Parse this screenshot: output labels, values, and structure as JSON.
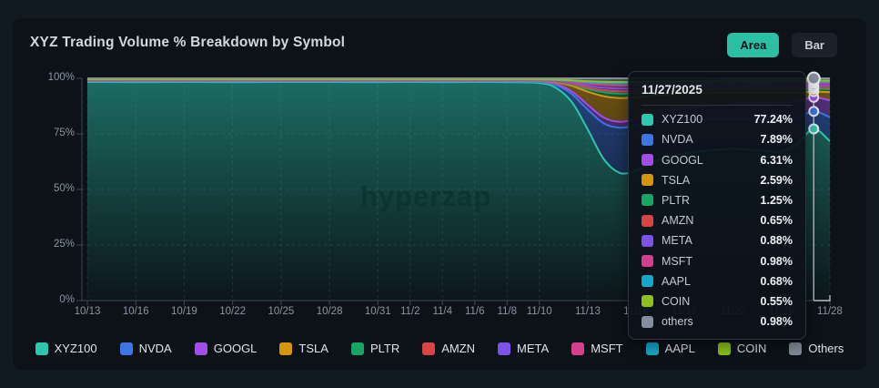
{
  "header": {
    "title": "XYZ Trading Volume % Breakdown by Symbol",
    "toggle": {
      "area_label": "Area",
      "bar_label": "Bar",
      "active": "Area"
    }
  },
  "watermark": "hyperzap",
  "colors": {
    "accent": "#2bc0a3",
    "page_bg": "#111923",
    "card_bg": "#0c1218",
    "axis": "#3e4a57",
    "grid": "rgba(154,180,190,0.16)",
    "crosshair": "#c8d0d8"
  },
  "chart_data": {
    "type": "area",
    "stacked": true,
    "unit": "%",
    "title": "XYZ Trading Volume % Breakdown by Symbol",
    "ylim": [
      0,
      100
    ],
    "grid": "dashed",
    "legend_position": "bottom",
    "y_ticks": [
      {
        "label": "100%",
        "value": 100
      },
      {
        "label": "75%",
        "value": 75
      },
      {
        "label": "50%",
        "value": 50
      },
      {
        "label": "25%",
        "value": 25
      },
      {
        "label": "0%",
        "value": 0
      }
    ],
    "x_ticks": [
      {
        "label": "10/13",
        "day": 0
      },
      {
        "label": "10/16",
        "day": 3
      },
      {
        "label": "10/19",
        "day": 6
      },
      {
        "label": "10/22",
        "day": 9
      },
      {
        "label": "10/25",
        "day": 12
      },
      {
        "label": "10/28",
        "day": 15
      },
      {
        "label": "10/31",
        "day": 18
      },
      {
        "label": "11/2",
        "day": 20
      },
      {
        "label": "11/4",
        "day": 22
      },
      {
        "label": "11/6",
        "day": 24
      },
      {
        "label": "11/8",
        "day": 26
      },
      {
        "label": "11/10",
        "day": 28
      },
      {
        "label": "11/13",
        "day": 31
      },
      {
        "label": "11/16",
        "day": 34
      },
      {
        "label": "11/19",
        "day": 37
      },
      {
        "label": "11/22",
        "day": 40
      },
      {
        "label": "11/25",
        "day": 43
      },
      {
        "label": "11/28",
        "day": 46
      }
    ],
    "x_days": [
      0,
      3,
      6,
      9,
      12,
      15,
      18,
      20,
      22,
      24,
      26,
      28,
      29,
      30,
      31,
      32,
      33,
      34,
      35,
      36,
      37,
      38,
      40,
      42,
      43,
      44,
      45,
      46
    ],
    "series": [
      {
        "name": "XYZ100",
        "color": "#2cc8ae",
        "values": [
          98.6,
          98.3,
          98.5,
          98.2,
          98.6,
          98.4,
          98.3,
          98.5,
          98.2,
          98.4,
          98.3,
          98.0,
          96.5,
          90.0,
          78.0,
          63.0,
          56.5,
          57.5,
          61.0,
          63.5,
          64.5,
          65.0,
          65.5,
          64.0,
          63.0,
          67.0,
          77.24,
          70.0
        ]
      },
      {
        "name": "NVDA",
        "color": "#3d74e6",
        "values": [
          0.35,
          0.4,
          0.35,
          0.4,
          0.35,
          0.35,
          0.4,
          0.35,
          0.4,
          0.35,
          0.4,
          0.5,
          1.2,
          3.5,
          9.0,
          16.0,
          20.0,
          20.0,
          18.0,
          16.0,
          15.0,
          14.0,
          13.0,
          13.5,
          13.5,
          11.0,
          7.89,
          10.5
        ]
      },
      {
        "name": "GOOGL",
        "color": "#a14ee8",
        "values": [
          0.22,
          0.22,
          0.22,
          0.22,
          0.22,
          0.22,
          0.22,
          0.22,
          0.22,
          0.22,
          0.22,
          0.3,
          0.5,
          1.2,
          2.2,
          2.6,
          2.6,
          3.0,
          3.6,
          4.4,
          5.0,
          5.5,
          6.2,
          6.8,
          7.2,
          7.0,
          6.31,
          7.4
        ]
      },
      {
        "name": "TSLA",
        "color": "#d6950d",
        "values": [
          0.18,
          0.18,
          0.18,
          0.18,
          0.18,
          0.18,
          0.18,
          0.18,
          0.18,
          0.18,
          0.18,
          0.25,
          0.8,
          2.5,
          6.0,
          9.5,
          10.5,
          9.5,
          8.0,
          7.0,
          6.3,
          5.8,
          5.0,
          4.5,
          4.2,
          3.8,
          2.59,
          3.6
        ]
      },
      {
        "name": "PLTR",
        "color": "#16a563",
        "values": [
          0.12,
          0.12,
          0.12,
          0.12,
          0.12,
          0.12,
          0.12,
          0.12,
          0.12,
          0.12,
          0.12,
          0.15,
          0.25,
          0.6,
          1.2,
          1.8,
          2.0,
          1.9,
          1.7,
          1.6,
          1.5,
          1.4,
          1.3,
          1.3,
          1.3,
          1.3,
          1.25,
          1.3
        ]
      },
      {
        "name": "AMZN",
        "color": "#d94444",
        "values": [
          0.07,
          0.07,
          0.07,
          0.07,
          0.07,
          0.07,
          0.07,
          0.07,
          0.07,
          0.07,
          0.07,
          0.08,
          0.15,
          0.35,
          0.7,
          0.9,
          1.0,
          0.95,
          0.85,
          0.8,
          0.75,
          0.72,
          0.7,
          0.68,
          0.66,
          0.66,
          0.65,
          0.66
        ]
      },
      {
        "name": "META",
        "color": "#7d52e8",
        "values": [
          0.09,
          0.09,
          0.09,
          0.09,
          0.09,
          0.09,
          0.09,
          0.09,
          0.09,
          0.09,
          0.09,
          0.1,
          0.2,
          0.45,
          0.85,
          1.1,
          1.2,
          1.15,
          1.05,
          1.0,
          0.95,
          0.92,
          0.9,
          0.9,
          0.88,
          0.88,
          0.88,
          0.88
        ]
      },
      {
        "name": "MSFT",
        "color": "#d43e8c",
        "values": [
          0.1,
          0.1,
          0.1,
          0.1,
          0.1,
          0.1,
          0.1,
          0.1,
          0.1,
          0.1,
          0.1,
          0.12,
          0.22,
          0.5,
          0.95,
          1.25,
          1.35,
          1.3,
          1.2,
          1.1,
          1.05,
          1.02,
          1.0,
          1.0,
          0.98,
          0.98,
          0.98,
          0.98
        ]
      },
      {
        "name": "AAPL",
        "color": "#16a9c7",
        "values": [
          0.07,
          0.07,
          0.07,
          0.07,
          0.07,
          0.07,
          0.07,
          0.07,
          0.07,
          0.07,
          0.07,
          0.08,
          0.14,
          0.32,
          0.6,
          0.8,
          0.9,
          0.85,
          0.78,
          0.74,
          0.72,
          0.7,
          0.69,
          0.68,
          0.68,
          0.68,
          0.68,
          0.68
        ]
      },
      {
        "name": "COIN",
        "color": "#8cc21b",
        "values": [
          0.06,
          0.06,
          0.06,
          0.06,
          0.06,
          0.06,
          0.06,
          0.06,
          0.06,
          0.06,
          0.06,
          0.07,
          0.12,
          0.26,
          0.5,
          0.65,
          0.72,
          0.68,
          0.62,
          0.58,
          0.57,
          0.56,
          0.55,
          0.55,
          0.55,
          0.55,
          0.55,
          0.55
        ]
      },
      {
        "name": "others",
        "color": "#848e9c",
        "values": [
          0.4,
          0.4,
          0.4,
          0.4,
          0.4,
          0.4,
          0.4,
          0.4,
          0.4,
          0.4,
          0.4,
          0.45,
          0.6,
          0.9,
          1.3,
          1.5,
          1.6,
          1.5,
          1.4,
          1.3,
          1.25,
          1.2,
          1.1,
          1.05,
          1.0,
          1.0,
          0.98,
          1.0
        ]
      }
    ]
  },
  "tooltip": {
    "date": "11/27/2025",
    "day": 45,
    "rows": [
      {
        "label": "XYZ100",
        "value": "77.24%",
        "color": "#2cc8ae"
      },
      {
        "label": "NVDA",
        "value": "7.89%",
        "color": "#3d74e6"
      },
      {
        "label": "GOOGL",
        "value": "6.31%",
        "color": "#a14ee8"
      },
      {
        "label": "TSLA",
        "value": "2.59%",
        "color": "#d6950d"
      },
      {
        "label": "PLTR",
        "value": "1.25%",
        "color": "#16a563"
      },
      {
        "label": "AMZN",
        "value": "0.65%",
        "color": "#d94444"
      },
      {
        "label": "META",
        "value": "0.88%",
        "color": "#7d52e8"
      },
      {
        "label": "MSFT",
        "value": "0.98%",
        "color": "#d43e8c"
      },
      {
        "label": "AAPL",
        "value": "0.68%",
        "color": "#16a9c7"
      },
      {
        "label": "COIN",
        "value": "0.55%",
        "color": "#8cc21b"
      },
      {
        "label": "others",
        "value": "0.98%",
        "color": "#848e9c"
      }
    ]
  },
  "legend": {
    "items": [
      {
        "label": "XYZ100",
        "color": "#2cc8ae"
      },
      {
        "label": "NVDA",
        "color": "#3d74e6"
      },
      {
        "label": "GOOGL",
        "color": "#a14ee8"
      },
      {
        "label": "TSLA",
        "color": "#d6950d"
      },
      {
        "label": "PLTR",
        "color": "#16a563"
      },
      {
        "label": "AMZN",
        "color": "#d94444"
      },
      {
        "label": "META",
        "color": "#7d52e8"
      },
      {
        "label": "MSFT",
        "color": "#d43e8c"
      },
      {
        "label": "AAPL",
        "color": "#16a9c7"
      },
      {
        "label": "COIN",
        "color": "#8cc21b"
      },
      {
        "label": "Others",
        "color": "#848e9c"
      }
    ]
  }
}
